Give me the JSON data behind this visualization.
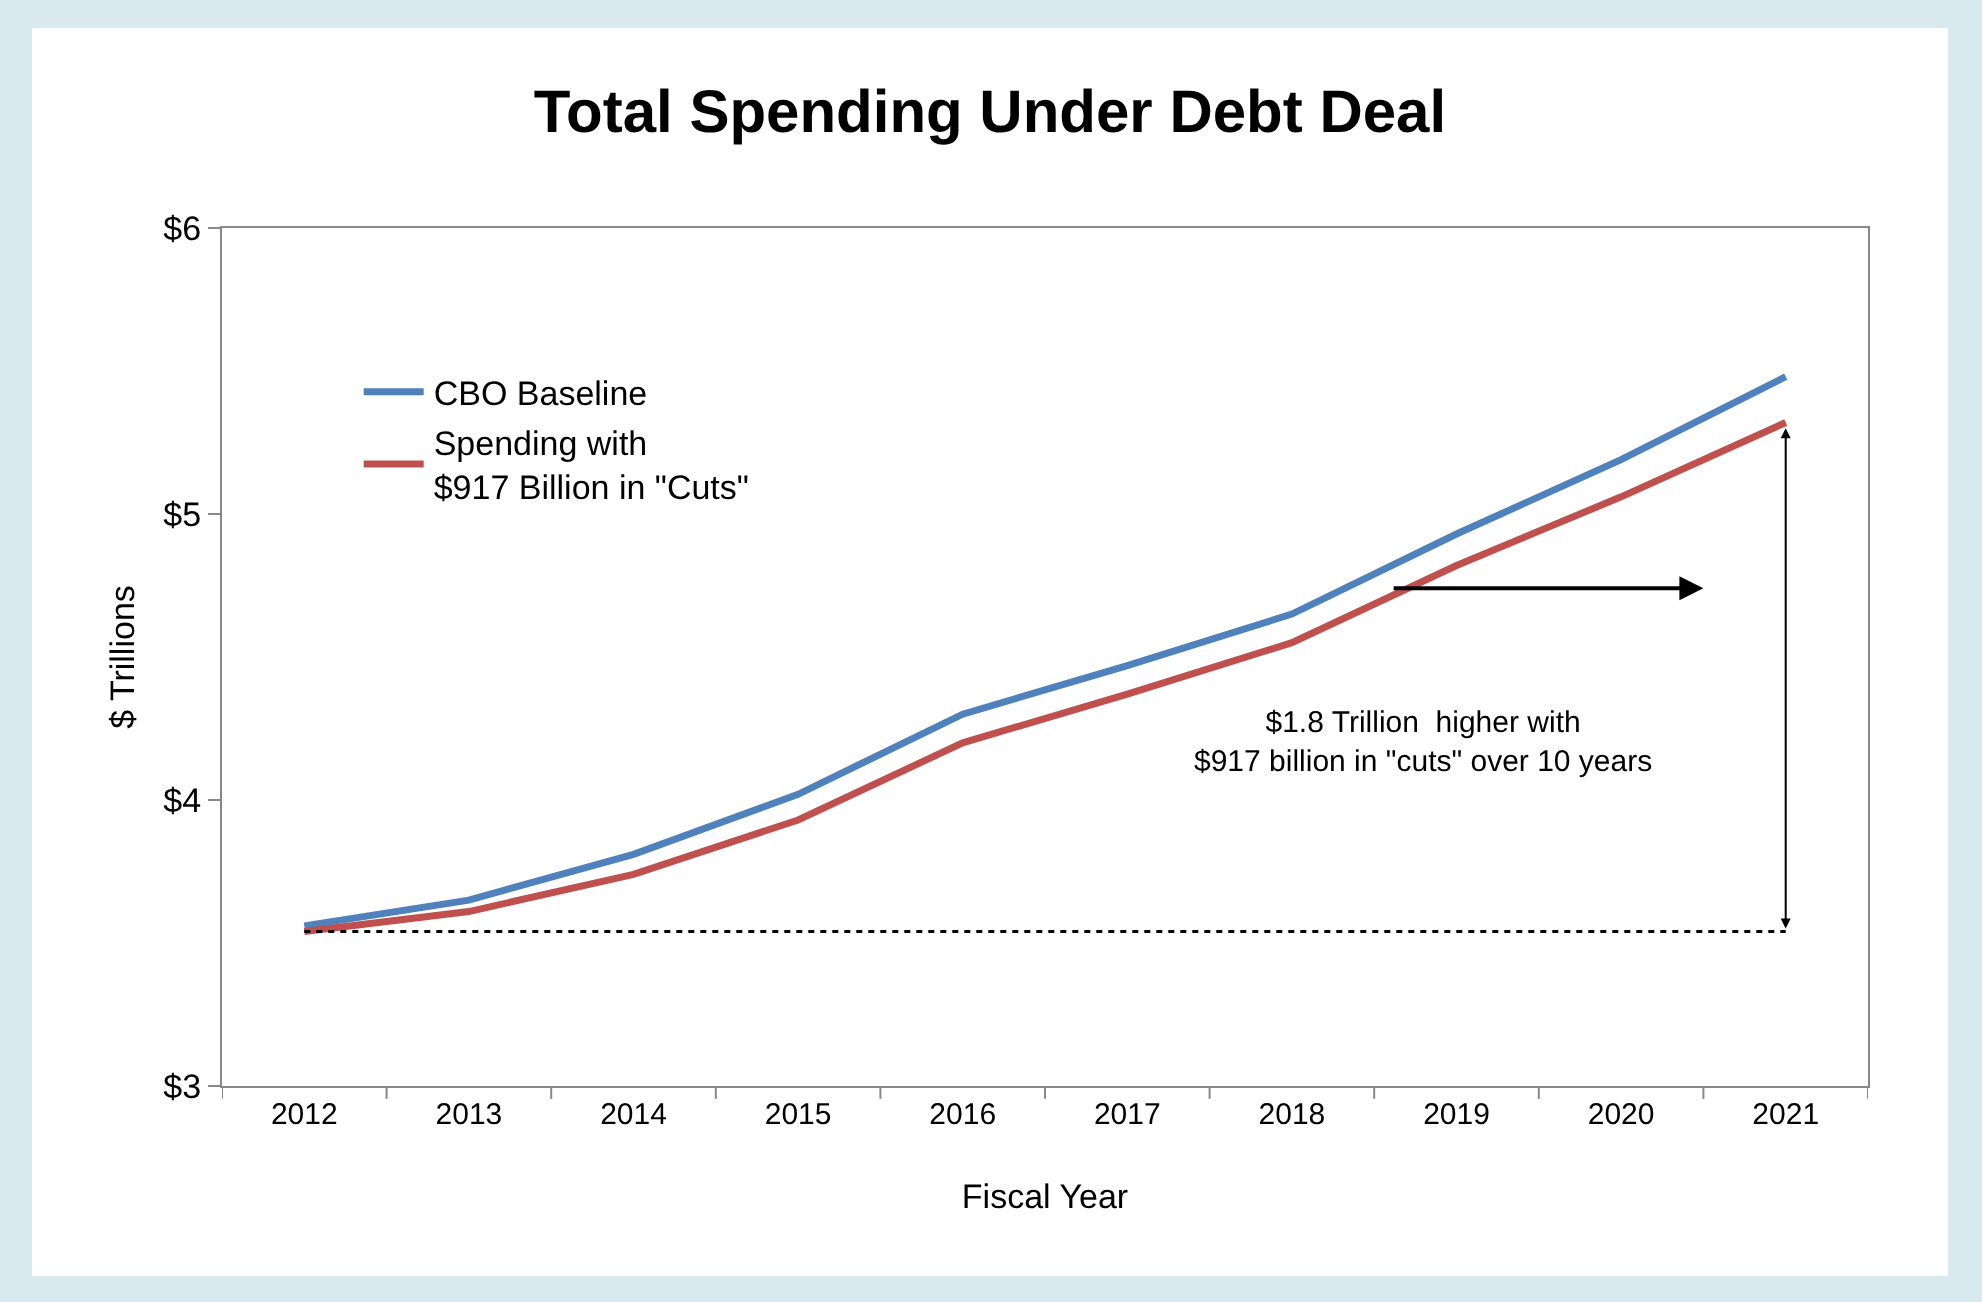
{
  "chart_data": {
    "type": "line",
    "title": "Total Spending Under Debt Deal",
    "xlabel": "Fiscal Year",
    "ylabel": "$ Trillions",
    "categories": [
      "2012",
      "2013",
      "2014",
      "2015",
      "2016",
      "2017",
      "2018",
      "2019",
      "2020",
      "2021"
    ],
    "series": [
      {
        "name": "CBO Baseline",
        "color": "#4f81bd",
        "values": [
          3.56,
          3.65,
          3.81,
          4.02,
          4.3,
          4.47,
          4.65,
          4.93,
          5.19,
          5.48
        ]
      },
      {
        "name": "Spending with\n$917 Billion in \"Cuts\"",
        "color": "#c0504d",
        "values": [
          3.54,
          3.61,
          3.74,
          3.93,
          4.2,
          4.37,
          4.55,
          4.82,
          5.06,
          5.32
        ]
      }
    ],
    "ylim": [
      3,
      6
    ],
    "yticks": [
      {
        "value": 3,
        "label": "$3"
      },
      {
        "value": 4,
        "label": "$4"
      },
      {
        "value": 5,
        "label": "$5"
      },
      {
        "value": 6,
        "label": "$6"
      }
    ],
    "ref_lines": [
      {
        "axis": "y",
        "value": 3.54,
        "color": "#000000",
        "line_style": "dotted"
      }
    ],
    "annotations": [
      "$1.8 Trillion  higher with\n$917 billion in \"cuts\" over 10 years"
    ],
    "grid": false,
    "legend": "top left",
    "marker": "none",
    "line_style": "solid"
  }
}
